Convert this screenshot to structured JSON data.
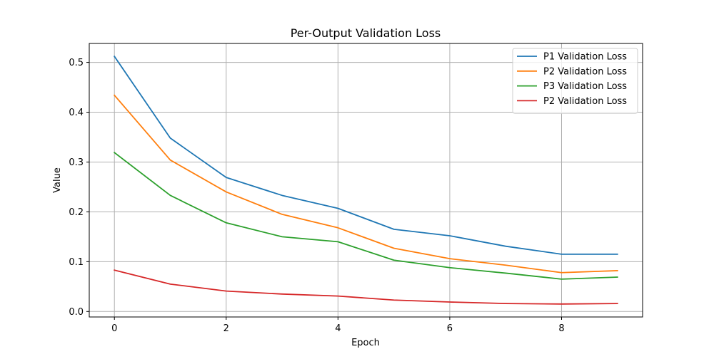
{
  "chart_data": {
    "type": "line",
    "title": "Per-Output Validation Loss",
    "xlabel": "Epoch",
    "ylabel": "Value",
    "x": [
      0,
      1,
      2,
      3,
      4,
      5,
      6,
      7,
      8,
      9
    ],
    "xlim": [
      -0.45,
      9.45
    ],
    "ylim": [
      -0.011,
      0.538
    ],
    "x_ticks": [
      0,
      2,
      4,
      6,
      8
    ],
    "x_tick_labels": [
      "0",
      "2",
      "4",
      "6",
      "8"
    ],
    "y_ticks": [
      0.0,
      0.1,
      0.2,
      0.3,
      0.4,
      0.5
    ],
    "y_tick_labels": [
      "0.0",
      "0.1",
      "0.2",
      "0.3",
      "0.4",
      "0.5"
    ],
    "grid": true,
    "legend_position": "top-right",
    "series": [
      {
        "name": "P1 Validation Loss",
        "color": "#1f77b4",
        "values": [
          0.512,
          0.348,
          0.269,
          0.233,
          0.207,
          0.165,
          0.152,
          0.131,
          0.115,
          0.115
        ]
      },
      {
        "name": "P2 Validation Loss",
        "color": "#ff7f0e",
        "values": [
          0.434,
          0.304,
          0.24,
          0.195,
          0.168,
          0.127,
          0.106,
          0.093,
          0.078,
          0.082
        ]
      },
      {
        "name": "P3 Validation Loss",
        "color": "#2ca02c",
        "values": [
          0.319,
          0.233,
          0.178,
          0.15,
          0.14,
          0.103,
          0.088,
          0.077,
          0.065,
          0.069
        ]
      },
      {
        "name": "P2 Validation Loss",
        "color": "#d62728",
        "values": [
          0.083,
          0.055,
          0.041,
          0.035,
          0.031,
          0.023,
          0.019,
          0.016,
          0.015,
          0.016
        ]
      }
    ]
  }
}
